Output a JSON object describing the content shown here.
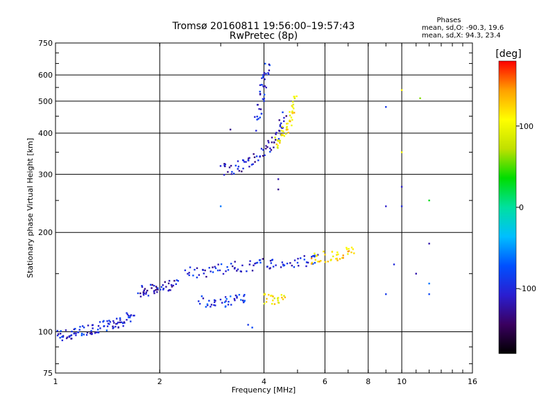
{
  "chart_data": {
    "type": "scatter",
    "title": "Tromsø 20160811 19:56:00–19:57:43",
    "subtitle": "RwPretec (8p)",
    "xlabel": "Frequency [MHz]",
    "ylabel": "Stationary phase Virtual Height [km]",
    "x_scale": "log2",
    "y_scale": "log",
    "xlim": [
      1,
      16
    ],
    "ylim": [
      75,
      750
    ],
    "x_ticks": [
      1,
      2,
      4,
      6,
      8,
      10,
      16
    ],
    "y_ticks": [
      75,
      100,
      200,
      300,
      400,
      500,
      600,
      750
    ],
    "grid": true,
    "stats": {
      "heading": "Phases",
      "line_o": "mean, sd,O: -90.3, 19.6",
      "line_x": "mean, sd,X: 94.3, 23.4"
    },
    "colorbar": {
      "label": "[deg]",
      "range": [
        -180,
        180
      ],
      "ticks": [
        100,
        0,
        -100
      ],
      "colormap": [
        "#000000",
        "#3a0060",
        "#2a1ed0",
        "#0050ff",
        "#00bfff",
        "#00e0a0",
        "#00dd00",
        "#c0e000",
        "#ffff00",
        "#ffa000",
        "#ff0000"
      ]
    },
    "traces": [
      {
        "name": "",
        "phase_deg": -100,
        "points": [
          [
            1.02,
            98
          ],
          [
            1.06,
            97
          ],
          [
            1.1,
            98
          ],
          [
            1.15,
            100
          ],
          [
            1.2,
            101
          ],
          [
            1.27,
            102
          ],
          [
            1.32,
            103
          ],
          [
            1.38,
            104
          ],
          [
            1.44,
            105
          ],
          [
            1.5,
            106
          ],
          [
            1.56,
            108
          ],
          [
            1.62,
            110
          ],
          [
            1.68,
            112
          ]
        ]
      },
      {
        "name": "",
        "phase_deg": -110,
        "points": [
          [
            1.75,
            132
          ],
          [
            1.8,
            133
          ],
          [
            1.88,
            134
          ],
          [
            1.96,
            135
          ],
          [
            2.05,
            137
          ],
          [
            2.15,
            139
          ],
          [
            2.25,
            141
          ]
        ]
      },
      {
        "name": "",
        "phase_deg": -100,
        "points": [
          [
            2.4,
            150
          ],
          [
            2.6,
            152
          ],
          [
            2.8,
            154
          ],
          [
            3.0,
            156
          ],
          [
            3.3,
            157
          ],
          [
            3.6,
            158
          ],
          [
            3.9,
            160
          ],
          [
            4.2,
            161
          ],
          [
            4.6,
            162
          ],
          [
            5.0,
            163
          ],
          [
            5.4,
            165
          ],
          [
            5.8,
            167
          ]
        ]
      },
      {
        "name": "",
        "phase_deg": -90,
        "points": [
          [
            2.6,
            124
          ],
          [
            2.8,
            123
          ],
          [
            3.0,
            123
          ],
          [
            3.2,
            124
          ],
          [
            3.4,
            125
          ],
          [
            3.6,
            126
          ]
        ]
      },
      {
        "name": "",
        "phase_deg": -110,
        "points": [
          [
            3.0,
            310
          ],
          [
            3.2,
            312
          ],
          [
            3.4,
            318
          ],
          [
            3.6,
            325
          ],
          [
            3.8,
            335
          ],
          [
            4.0,
            350
          ],
          [
            4.2,
            370
          ],
          [
            4.4,
            390
          ],
          [
            4.5,
            420
          ],
          [
            4.6,
            460
          ]
        ]
      },
      {
        "name": "",
        "phase_deg": -100,
        "points": [
          [
            3.8,
            420
          ],
          [
            3.9,
            470
          ],
          [
            3.95,
            520
          ],
          [
            4.0,
            570
          ],
          [
            4.05,
            620
          ],
          [
            4.1,
            640
          ]
        ]
      },
      {
        "name": "",
        "phase_deg": 110,
        "points": [
          [
            4.3,
            370
          ],
          [
            4.45,
            385
          ],
          [
            4.6,
            400
          ],
          [
            4.7,
            420
          ],
          [
            4.8,
            450
          ],
          [
            4.85,
            480
          ],
          [
            4.9,
            520
          ]
        ]
      },
      {
        "name": "",
        "phase_deg": 120,
        "points": [
          [
            5.5,
            165
          ],
          [
            5.8,
            168
          ],
          [
            6.2,
            170
          ],
          [
            6.6,
            172
          ],
          [
            7.0,
            174
          ],
          [
            7.2,
            172
          ]
        ]
      },
      {
        "name": "",
        "phase_deg": 110,
        "points": [
          [
            4.0,
            127
          ],
          [
            4.2,
            126
          ],
          [
            4.4,
            125
          ],
          [
            4.6,
            128
          ]
        ]
      }
    ],
    "scatter_points": [
      {
        "x": 9.0,
        "y": 480,
        "phase_deg": -90
      },
      {
        "x": 10.0,
        "y": 275,
        "phase_deg": -110
      },
      {
        "x": 10.0,
        "y": 240,
        "phase_deg": -100
      },
      {
        "x": 9.0,
        "y": 240,
        "phase_deg": -110
      },
      {
        "x": 12.0,
        "y": 250,
        "phase_deg": 30
      },
      {
        "x": 12.0,
        "y": 185,
        "phase_deg": -120
      },
      {
        "x": 11.0,
        "y": 150,
        "phase_deg": -120
      },
      {
        "x": 12.0,
        "y": 140,
        "phase_deg": -60
      },
      {
        "x": 12.0,
        "y": 130,
        "phase_deg": -80
      },
      {
        "x": 11.3,
        "y": 510,
        "phase_deg": 60
      },
      {
        "x": 10.0,
        "y": 540,
        "phase_deg": 110
      },
      {
        "x": 10.0,
        "y": 350,
        "phase_deg": 100
      },
      {
        "x": 9.0,
        "y": 130,
        "phase_deg": -90
      },
      {
        "x": 9.5,
        "y": 160,
        "phase_deg": -100
      },
      {
        "x": 3.2,
        "y": 410,
        "phase_deg": -130
      },
      {
        "x": 3.0,
        "y": 240,
        "phase_deg": -60
      },
      {
        "x": 3.6,
        "y": 105,
        "phase_deg": -90
      },
      {
        "x": 3.7,
        "y": 103,
        "phase_deg": -80
      },
      {
        "x": 4.4,
        "y": 290,
        "phase_deg": -120
      },
      {
        "x": 4.4,
        "y": 270,
        "phase_deg": -130
      }
    ]
  }
}
